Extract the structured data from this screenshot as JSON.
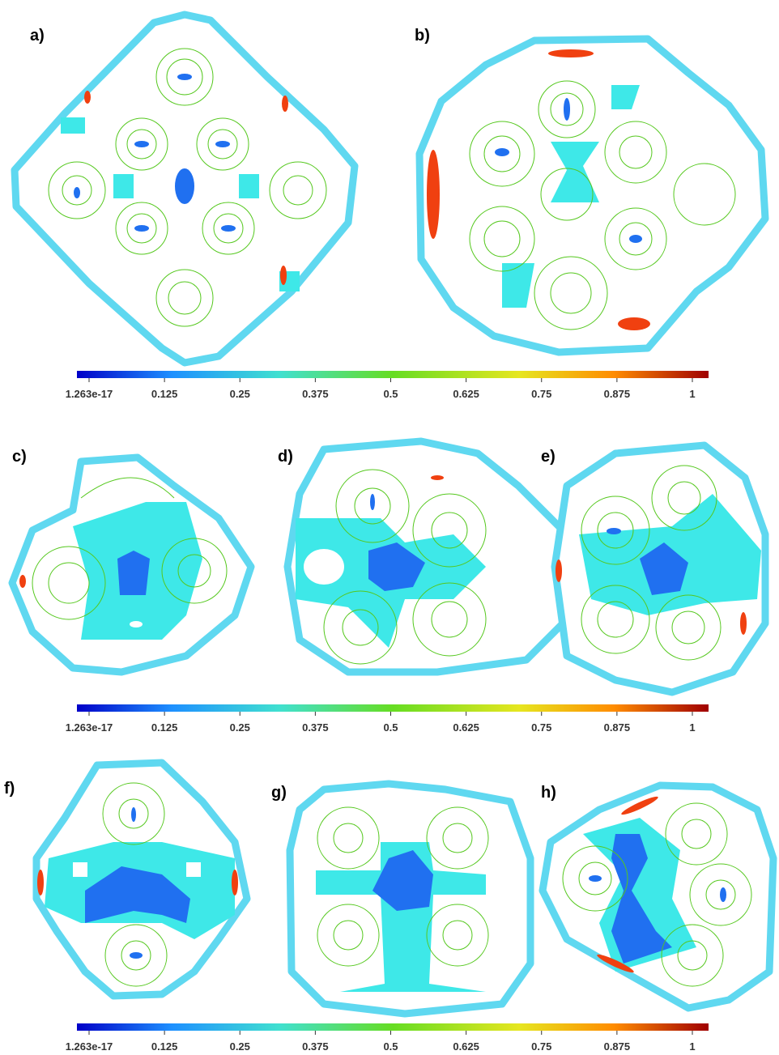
{
  "panels": [
    {
      "label": "a)"
    },
    {
      "label": "b)"
    },
    {
      "label": "c)"
    },
    {
      "label": "d)"
    },
    {
      "label": "e)"
    },
    {
      "label": "f)"
    },
    {
      "label": "g)"
    },
    {
      "label": "h)"
    }
  ],
  "colorbars": [
    {
      "ticks": [
        {
          "value": 1.263e-17,
          "label": "1.263e-17"
        },
        0.125,
        0.25,
        0.375,
        0.5,
        0.625,
        0.75,
        0.875,
        1
      ]
    },
    {
      "ticks": [
        {
          "value": 1.263e-17,
          "label": "1.263e-17"
        },
        0.125,
        0.25,
        0.375,
        0.5,
        0.625,
        0.75,
        0.875,
        1
      ]
    },
    {
      "ticks": [
        {
          "value": 1.263e-17,
          "label": "1.263e-17"
        },
        0.125,
        0.25,
        0.375,
        0.5,
        0.625,
        0.75,
        0.875,
        1
      ]
    }
  ]
}
